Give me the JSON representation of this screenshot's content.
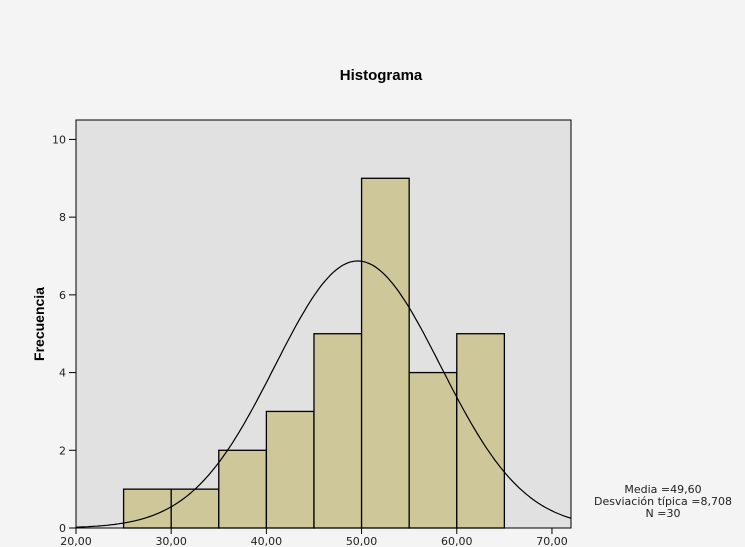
{
  "chart_data": {
    "type": "bar",
    "title": "Histograma",
    "xlabel": "",
    "ylabel": "Frecuencia",
    "xlim": [
      20,
      72
    ],
    "ylim": [
      0,
      10.5
    ],
    "bin_width": 5,
    "bins": [
      {
        "start": 25,
        "end": 30,
        "count": 1
      },
      {
        "start": 30,
        "end": 35,
        "count": 1
      },
      {
        "start": 35,
        "end": 40,
        "count": 2
      },
      {
        "start": 40,
        "end": 45,
        "count": 3
      },
      {
        "start": 45,
        "end": 50,
        "count": 5
      },
      {
        "start": 50,
        "end": 55,
        "count": 9
      },
      {
        "start": 55,
        "end": 60,
        "count": 4
      },
      {
        "start": 60,
        "end": 65,
        "count": 5
      }
    ],
    "x_ticks": [
      {
        "value": 20,
        "label": "20,00"
      },
      {
        "value": 30,
        "label": "30,00"
      },
      {
        "value": 40,
        "label": "40,00"
      },
      {
        "value": 50,
        "label": "50,00"
      },
      {
        "value": 60,
        "label": "60,00"
      },
      {
        "value": 70,
        "label": "70,00"
      }
    ],
    "y_ticks": [
      {
        "value": 0,
        "label": "0"
      },
      {
        "value": 2,
        "label": "2"
      },
      {
        "value": 4,
        "label": "4"
      },
      {
        "value": 6,
        "label": "6"
      },
      {
        "value": 8,
        "label": "8"
      },
      {
        "value": 10,
        "label": "10"
      }
    ],
    "normal_curve": {
      "mean": 49.6,
      "sd": 8.708
    },
    "stats": {
      "media": "Media =49,60",
      "desviacion": "Desviación típica =8,708",
      "n": "N =30"
    },
    "colors": {
      "plot_bg": "#e1e1e1",
      "bar_fill": "#cdc799",
      "bar_stroke": "#000000",
      "curve": "#000000"
    }
  }
}
